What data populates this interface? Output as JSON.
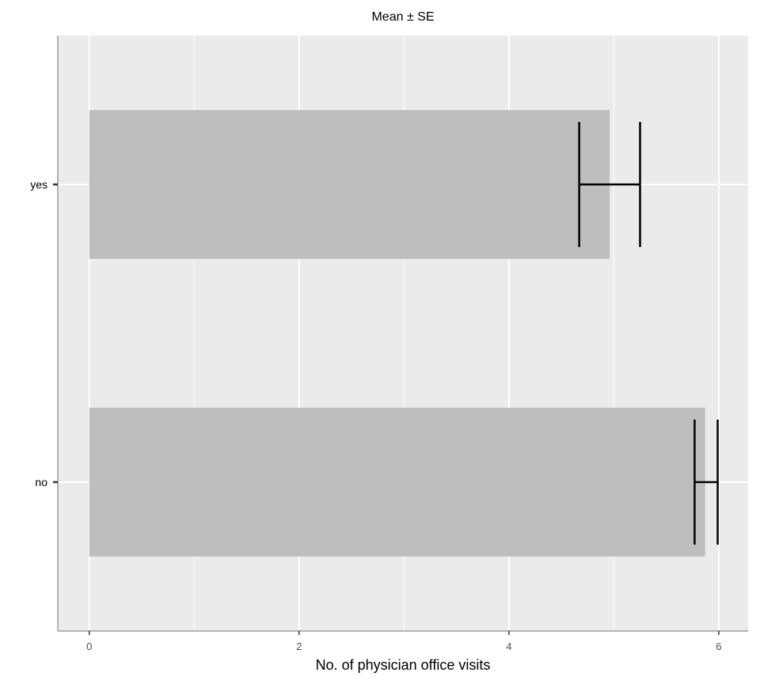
{
  "chart_data": {
    "type": "bar",
    "orientation": "horizontal",
    "title": "Mean ± SE",
    "xlabel": "No. of physician office visits",
    "ylabel": "",
    "categories": [
      "yes",
      "no"
    ],
    "values": [
      4.96,
      5.87
    ],
    "error": [
      {
        "low": 4.67,
        "high": 5.25
      },
      {
        "low": 5.77,
        "high": 5.99
      }
    ],
    "xlim": [
      -0.3,
      6.28
    ],
    "xticks": [
      0,
      2,
      4,
      6
    ],
    "xtick_labels": [
      "0",
      "2",
      "4",
      "6"
    ],
    "grid": true,
    "colors": {
      "panel": "#ebebeb",
      "grid": "#ffffff",
      "bar": "#bebebe",
      "errorbar": "#000000",
      "axis": "#b3b3b3"
    }
  }
}
